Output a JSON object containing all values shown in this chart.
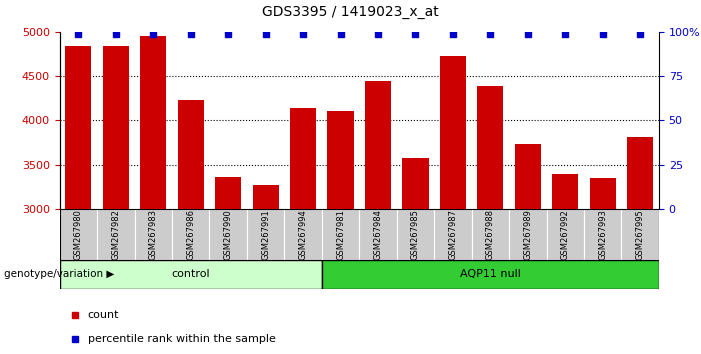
{
  "title": "GDS3395 / 1419023_x_at",
  "samples": [
    "GSM267980",
    "GSM267982",
    "GSM267983",
    "GSM267986",
    "GSM267990",
    "GSM267991",
    "GSM267994",
    "GSM267981",
    "GSM267984",
    "GSM267985",
    "GSM267987",
    "GSM267988",
    "GSM267989",
    "GSM267992",
    "GSM267993",
    "GSM267995"
  ],
  "counts": [
    4840,
    4840,
    4950,
    4230,
    3360,
    3270,
    4140,
    4110,
    4450,
    3570,
    4730,
    4390,
    3730,
    3390,
    3350,
    3810
  ],
  "percentile_ranks": [
    99,
    99,
    99,
    99,
    99,
    99,
    99,
    99,
    99,
    99,
    99,
    99,
    99,
    99,
    99,
    99
  ],
  "bar_color": "#cc0000",
  "percentile_color": "#0000cc",
  "ylim_left": [
    3000,
    5000
  ],
  "ylim_right": [
    0,
    100
  ],
  "yticks_left": [
    3000,
    3500,
    4000,
    4500,
    5000
  ],
  "yticks_right": [
    0,
    25,
    50,
    75,
    100
  ],
  "control_count": 7,
  "aqp11_count": 9,
  "control_label": "control",
  "aqp11_label": "AQP11 null",
  "group_label": "genotype/variation",
  "legend_count_label": "count",
  "legend_percentile_label": "percentile rank within the sample",
  "control_color": "#ccffcc",
  "aqp11_color": "#33cc33",
  "xticklabel_bg": "#cccccc",
  "bar_width": 0.7,
  "title_fontsize": 10,
  "tick_fontsize": 8,
  "sample_fontsize": 6,
  "group_fontsize": 8,
  "legend_fontsize": 8
}
